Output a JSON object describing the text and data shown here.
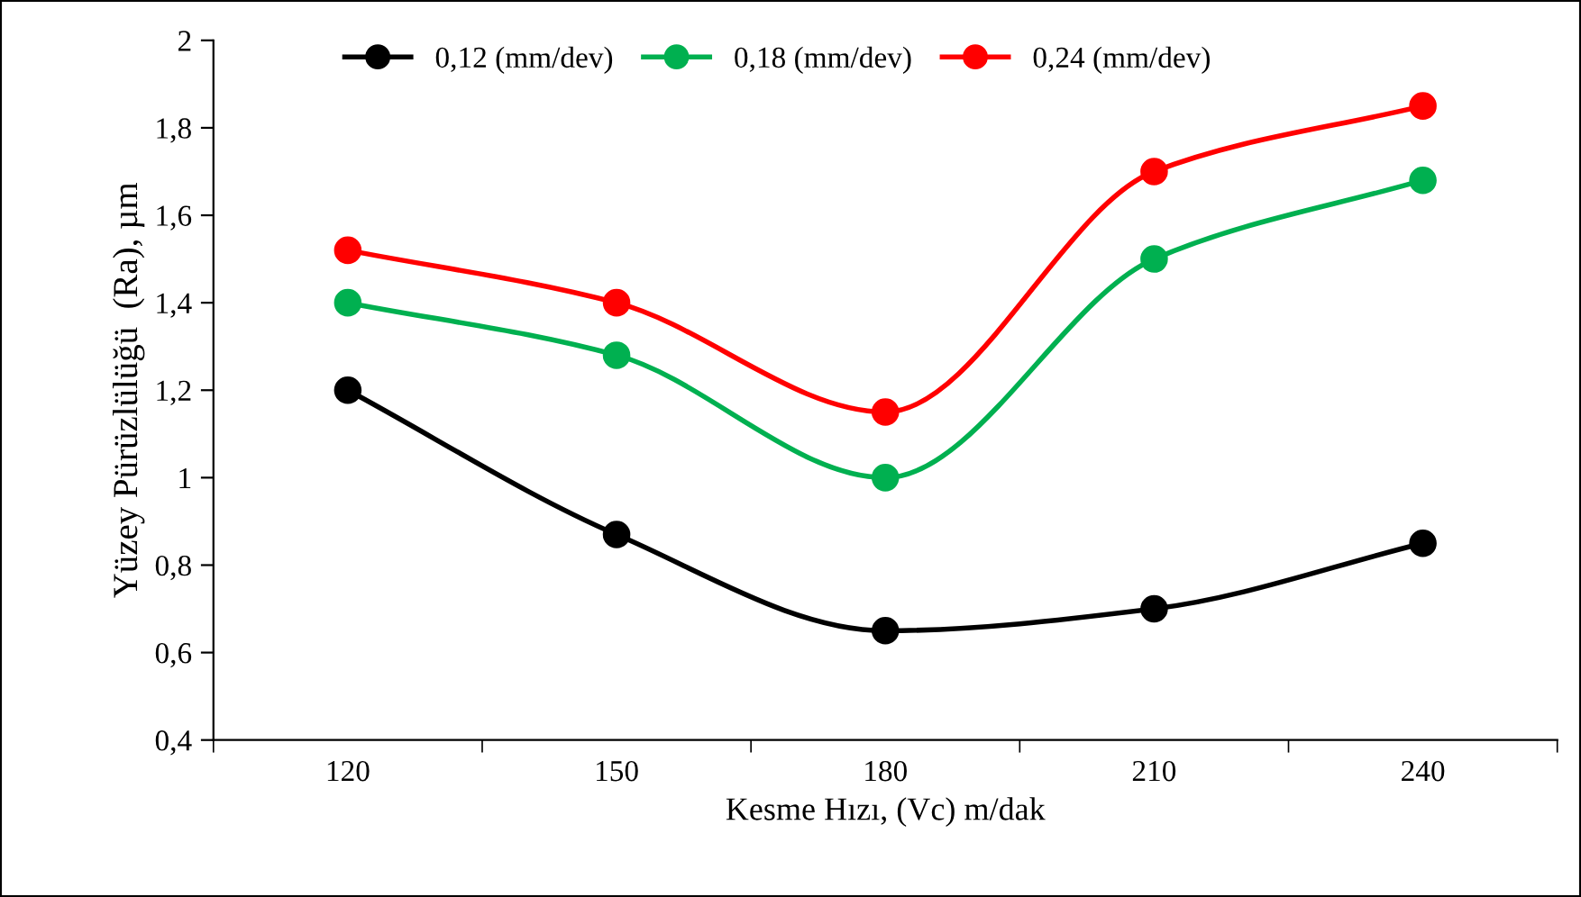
{
  "chart_data": {
    "type": "line",
    "xlabel": "Kesme Hızı, (Vc) m/dak",
    "ylabel": "Yüzey Pürüzlülüğü  (Ra), µm",
    "categories": [
      "120",
      "150",
      "180",
      "210",
      "240"
    ],
    "series": [
      {
        "name": "0,12 (mm/dev)",
        "color": "#000000",
        "values": [
          1.2,
          0.87,
          0.65,
          0.7,
          0.85
        ]
      },
      {
        "name": "0,18 (mm/dev)",
        "color": "#00b050",
        "values": [
          1.4,
          1.28,
          1.0,
          1.5,
          1.68
        ]
      },
      {
        "name": "0,24 (mm/dev)",
        "color": "#ff0000",
        "values": [
          1.52,
          1.4,
          1.15,
          1.7,
          1.85
        ]
      }
    ],
    "ylim": [
      0.4,
      2
    ],
    "yticks": [
      {
        "value": 0.4,
        "label": "0,4"
      },
      {
        "value": 0.6,
        "label": "0,6"
      },
      {
        "value": 0.8,
        "label": "0,8"
      },
      1,
      {
        "value": 1.2,
        "label": "1,2"
      },
      {
        "value": 1.4,
        "label": "1,4"
      },
      {
        "value": 1.6,
        "label": "1,6"
      },
      {
        "value": 1.8,
        "label": "1,8"
      },
      2
    ],
    "grid": false,
    "legend": "top",
    "marker": "circle",
    "line_style": "solid"
  }
}
